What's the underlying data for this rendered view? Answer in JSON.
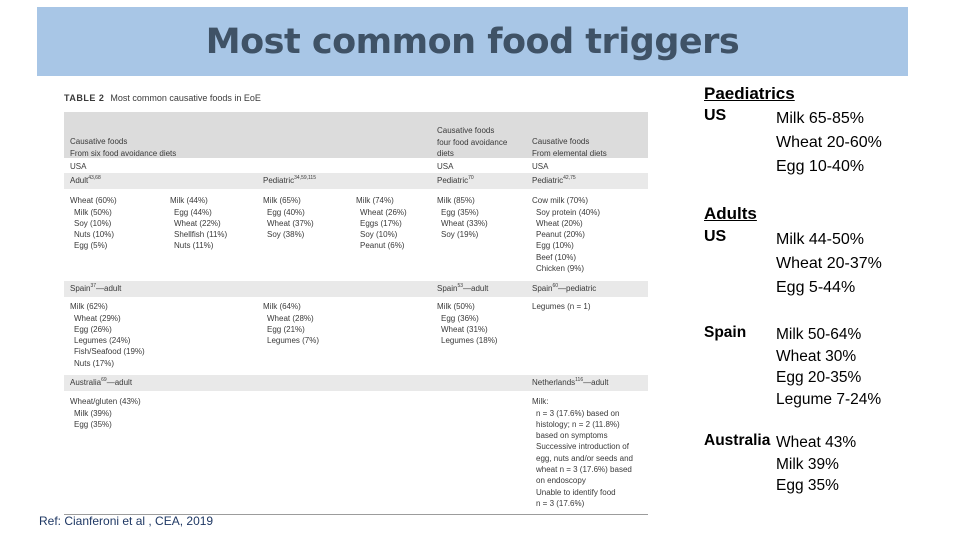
{
  "title": "Most common food triggers",
  "table": {
    "caption_label": "TABLE 2",
    "caption_text": "Most common causative foods in EoE",
    "headers": {
      "six_food": [
        "Causative foods",
        "From six food avoidance diets"
      ],
      "four_food": [
        "Causative foods",
        "four food avoidance",
        "diets"
      ],
      "elemental": [
        "Causative foods",
        "From elemental diets"
      ]
    },
    "usa": "USA",
    "adult_label": "Adult",
    "adult_refs": "43,68",
    "pediatric_label": "Pediatric",
    "pediatric_refs_six": "34,59,115",
    "pediatric_refs_four": "70",
    "pediatric_refs_elem": "42,75",
    "usa_adult_a": [
      "Wheat (60%)",
      "Milk (50%)",
      "Soy (10%)",
      "Nuts (10%)",
      "Egg (5%)"
    ],
    "usa_adult_b": [
      "Milk (44%)",
      "Egg (44%)",
      "Wheat (22%)",
      "Shellfish (11%)",
      "Nuts (11%)"
    ],
    "usa_ped_a": [
      "Milk (65%)",
      "Egg (40%)",
      "Wheat (37%)",
      "Soy (38%)"
    ],
    "usa_ped_b": [
      "Milk (74%)",
      "Wheat (26%)",
      "Eggs (17%)",
      "Soy (10%)",
      "Peanut (6%)"
    ],
    "usa_four": [
      "Milk (85%)",
      "Egg (35%)",
      "Wheat (33%)",
      "Soy (19%)"
    ],
    "usa_elem": [
      "Cow milk (70%)",
      "Soy protein (40%)",
      "Wheat (20%)",
      "Peanut (20%)",
      "Egg (10%)",
      "Beef (10%)",
      "Chicken (9%)"
    ],
    "spain_adult_label": "Spain",
    "spain_adult_ref": "37",
    "spain_adult_suffix": "—adult",
    "spain_four_ref": "53",
    "spain_ped_ref": "60",
    "spain_ped_suffix": "—pediatric",
    "spain_a": [
      "Milk (62%)",
      "Wheat (29%)",
      "Egg (26%)",
      "Legumes (24%)",
      "Fish/Seafood (19%)",
      "Nuts (17%)"
    ],
    "spain_b": [
      "Milk (64%)",
      "Wheat (28%)",
      "Egg (21%)",
      "Legumes (7%)"
    ],
    "spain_four": [
      "Milk (50%)",
      "Egg (36%)",
      "Wheat (31%)",
      "Legumes (18%)"
    ],
    "spain_elem": [
      "Legumes (n = 1)"
    ],
    "australia_label": "Australia",
    "australia_ref": "69",
    "netherlands_label": "Netherlands",
    "netherlands_ref": "116",
    "australia_items": [
      "Wheat/gluten (43%)",
      "Milk (39%)",
      "Egg (35%)"
    ],
    "netherlands_items": [
      "Milk:",
      "n = 3 (17.6%) based on",
      "histology; n = 2 (11.8%)",
      "based on symptoms",
      "Successive introduction of",
      "egg, nuts and/or seeds and",
      "wheat n = 3 (17.6%) based",
      "on endoscopy",
      "Unable to identify food",
      "n = 3 (17.6%)"
    ]
  },
  "summary": {
    "paediatrics_title": "Paediatrics",
    "paed_us_label": "US",
    "paed_us_values": [
      "Milk 65-85%",
      "Wheat 20-60%",
      "Egg 10-40%"
    ],
    "adults_title": "Adults",
    "adult_us_label": "US",
    "adult_us_values": [
      "Milk 44-50%",
      "Wheat 20-37%",
      "Egg 5-44%"
    ],
    "spain_label": "Spain",
    "spain_values": [
      "Milk 50-64%",
      "Wheat 30%",
      "Egg 20-35%",
      "Legume 7-24%"
    ],
    "australia_label": "Australia",
    "australia_values": [
      "Wheat 43%",
      "Milk 39%",
      "Egg 35%"
    ]
  },
  "reference": "Ref: Cianferoni et al , CEA, 2019"
}
